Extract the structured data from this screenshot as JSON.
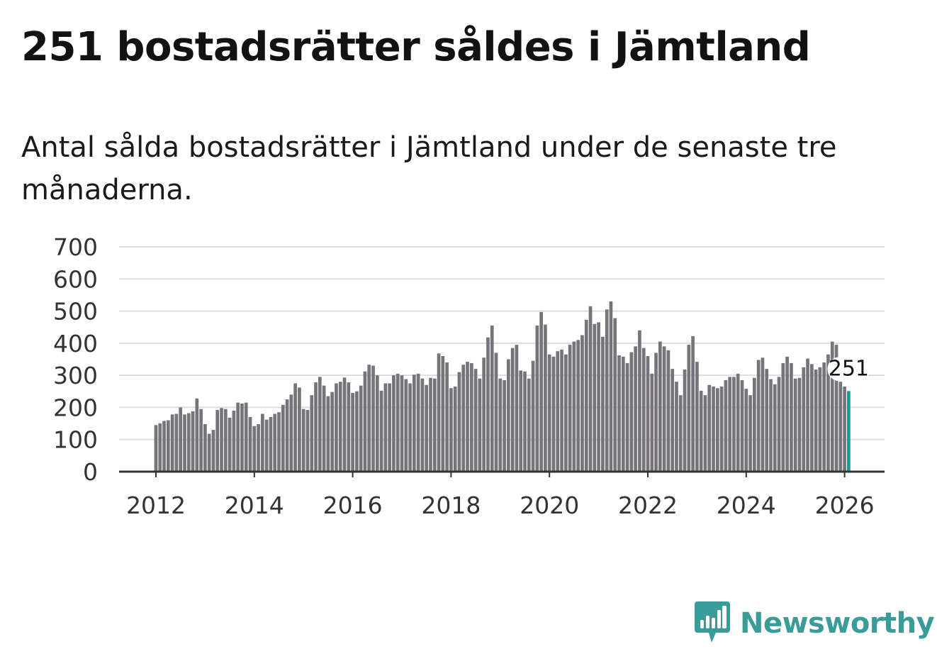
{
  "title": "251 bostadsrätter såldes i Jämtland",
  "subtitle": "Antal sålda bostadsrätter i Jämtland under de senaste tre månaderna.",
  "brand": {
    "name": "Newsworthy",
    "color": "#3a9c98"
  },
  "colors": {
    "bar": "#76747a",
    "highlight": "#1a9a96",
    "grid": "#dddddd",
    "axis": "#333333"
  },
  "chart_data": {
    "type": "bar",
    "title": "Antal sålda bostadsrätter i Jämtland",
    "xlabel": "",
    "ylabel": "",
    "ylim": [
      0,
      700
    ],
    "yticks": [
      0,
      100,
      200,
      300,
      400,
      500,
      600,
      700
    ],
    "xticks": [
      "2012",
      "2014",
      "2016",
      "2018",
      "2020",
      "2022",
      "2024",
      "2026"
    ],
    "x_start": "2012-01",
    "grid": true,
    "annotation": {
      "text": "251",
      "index": 169
    },
    "values": [
      145,
      150,
      158,
      160,
      178,
      180,
      200,
      178,
      182,
      188,
      228,
      195,
      148,
      118,
      130,
      192,
      198,
      195,
      168,
      190,
      215,
      212,
      215,
      170,
      142,
      148,
      180,
      162,
      170,
      180,
      185,
      208,
      225,
      240,
      275,
      262,
      195,
      192,
      238,
      278,
      295,
      268,
      235,
      248,
      275,
      280,
      293,
      278,
      245,
      250,
      268,
      312,
      333,
      330,
      300,
      252,
      275,
      275,
      300,
      305,
      300,
      288,
      275,
      302,
      305,
      290,
      270,
      292,
      290,
      368,
      360,
      340,
      260,
      265,
      310,
      333,
      342,
      338,
      320,
      290,
      355,
      418,
      455,
      370,
      290,
      285,
      350,
      385,
      395,
      315,
      312,
      290,
      345,
      455,
      497,
      458,
      365,
      358,
      375,
      380,
      365,
      395,
      405,
      410,
      425,
      473,
      515,
      460,
      465,
      420,
      505,
      530,
      478,
      362,
      358,
      338,
      372,
      390,
      440,
      385,
      360,
      305,
      370,
      405,
      390,
      378,
      320,
      280,
      238,
      318,
      395,
      422,
      342,
      252,
      238,
      270,
      265,
      260,
      265,
      285,
      295,
      295,
      305,
      285,
      258,
      238,
      292,
      348,
      355,
      320,
      288,
      272,
      295,
      338,
      358,
      338,
      290,
      292,
      325,
      352,
      335,
      318,
      325,
      340,
      365,
      405,
      395,
      280,
      265,
      251
    ]
  }
}
